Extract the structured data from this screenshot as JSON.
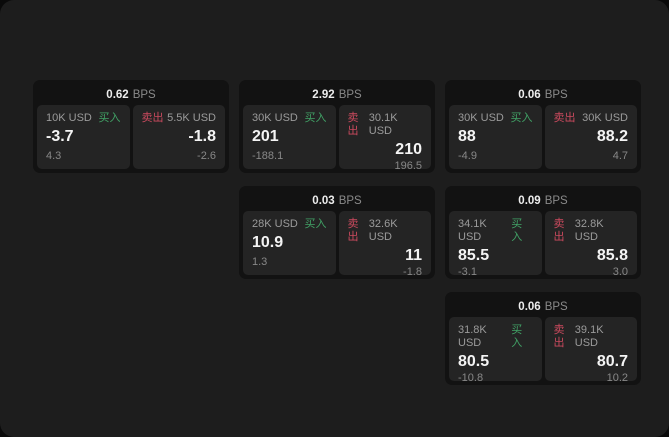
{
  "labels": {
    "bps_suffix": "BPS",
    "buy": "买入",
    "sell": "卖出"
  },
  "colors": {
    "buy": "#41a266",
    "sell": "#cb4a5e"
  },
  "cards": [
    {
      "row": 1,
      "col": 1,
      "bps": "0.62",
      "buy": {
        "amount": "10K USD",
        "value": "-3.7",
        "sub": "4.3"
      },
      "sell": {
        "amount": "5.5K USD",
        "value": "-1.8",
        "sub": "-2.6"
      }
    },
    {
      "row": 1,
      "col": 2,
      "bps": "2.92",
      "buy": {
        "amount": "30K USD",
        "value": "201",
        "sub": "-188.1"
      },
      "sell": {
        "amount": "30.1K USD",
        "value": "210",
        "sub": "196.5"
      }
    },
    {
      "row": 1,
      "col": 3,
      "bps": "0.06",
      "buy": {
        "amount": "30K USD",
        "value": "88",
        "sub": "-4.9"
      },
      "sell": {
        "amount": "30K USD",
        "value": "88.2",
        "sub": "4.7"
      }
    },
    {
      "row": 2,
      "col": 2,
      "bps": "0.03",
      "buy": {
        "amount": "28K USD",
        "value": "10.9",
        "sub": "1.3"
      },
      "sell": {
        "amount": "32.6K USD",
        "value": "11",
        "sub": "-1.8"
      }
    },
    {
      "row": 2,
      "col": 3,
      "bps": "0.09",
      "buy": {
        "amount": "34.1K USD",
        "value": "85.5",
        "sub": "-3.1"
      },
      "sell": {
        "amount": "32.8K USD",
        "value": "85.8",
        "sub": "3.0"
      }
    },
    {
      "row": 3,
      "col": 3,
      "bps": "0.06",
      "buy": {
        "amount": "31.8K USD",
        "value": "80.5",
        "sub": "-10.8"
      },
      "sell": {
        "amount": "39.1K USD",
        "value": "80.7",
        "sub": "10.2"
      }
    }
  ]
}
